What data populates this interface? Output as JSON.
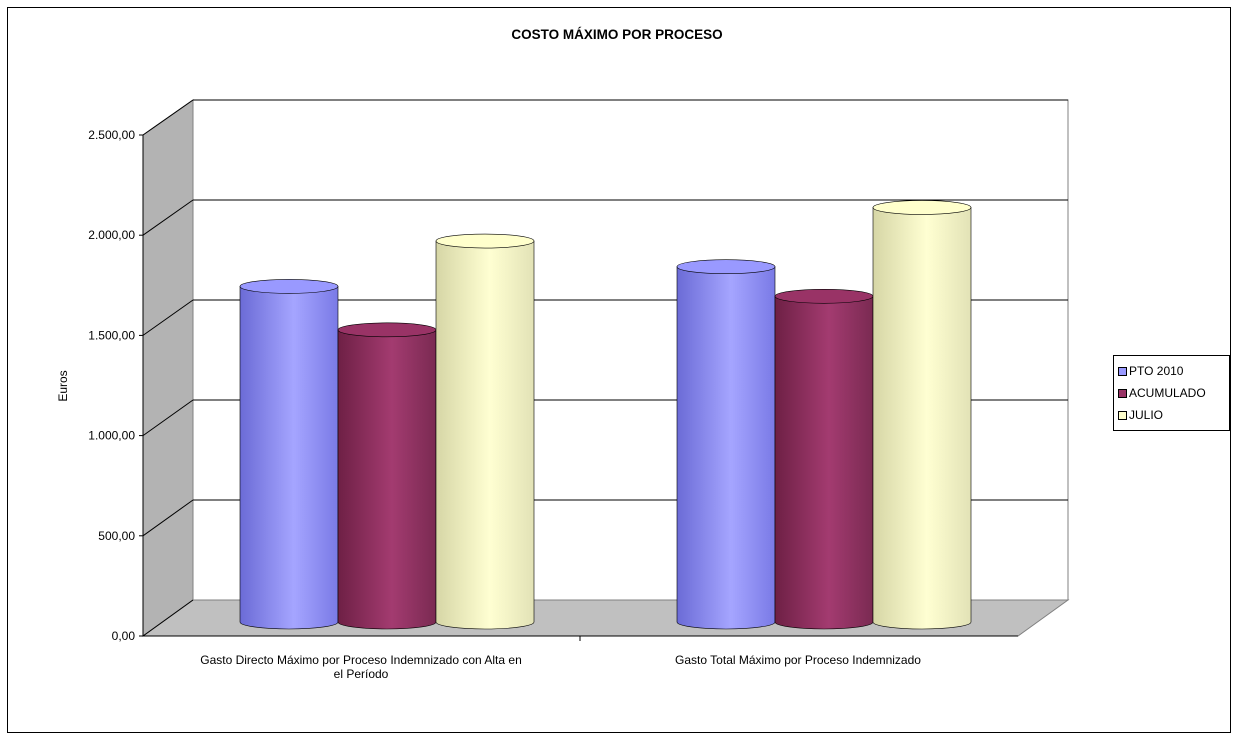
{
  "chart_data": {
    "type": "bar",
    "title": "COSTO MÁXIMO POR PROCESO",
    "ylabel": "Euros",
    "xlabel": "",
    "ylim": [
      0,
      2500
    ],
    "yticks": [
      "0,00",
      "500,00",
      "1.000,00",
      "1.500,00",
      "2.000,00",
      "2.500,00"
    ],
    "categories": [
      [
        "Gasto Directo Máximo  por Proceso Indemnizado  con Alta en",
        "el Período"
      ],
      [
        "Gasto Total Máximo  por Proceso Indemnizado"
      ]
    ],
    "series": [
      {
        "name": "PTO 2010",
        "values": [
          1700,
          1800
        ],
        "color": "#9999ff"
      },
      {
        "name": "ACUMULADO",
        "values": [
          1480,
          1650
        ],
        "color": "#993366"
      },
      {
        "name": "JULIO",
        "values": [
          1930,
          2100
        ],
        "color": "#ffffcc"
      }
    ],
    "legend_position": "right",
    "grid": true,
    "shape": "cylinder-3d"
  }
}
